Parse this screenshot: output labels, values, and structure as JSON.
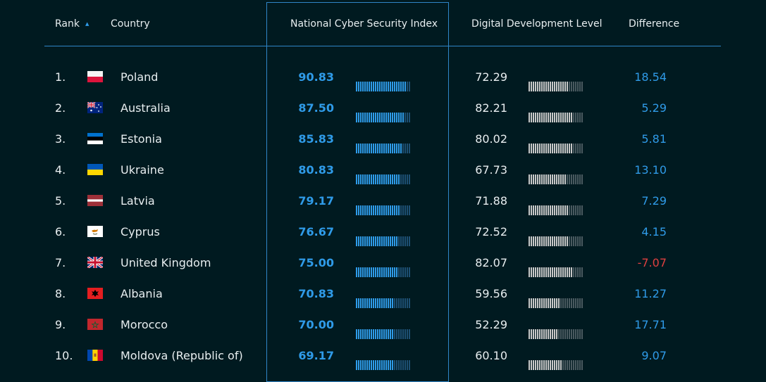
{
  "header": {
    "rank": "Rank",
    "country": "Country",
    "ncsi": "National Cyber Security Index",
    "ddl": "Digital Development Level",
    "difference": "Difference"
  },
  "colors": {
    "ncsi": "#2f9be8",
    "ddl": "#c8c8c8",
    "negative": "#e04040",
    "background": "#001a20"
  },
  "rows": [
    {
      "rank": "1.",
      "flag": "poland-flag",
      "country": "Poland",
      "ncsi": "90.83",
      "ncsi_value": 90.83,
      "ddl": "72.29",
      "ddl_value": 72.29,
      "difference": "18.54",
      "negative": false
    },
    {
      "rank": "2.",
      "flag": "australia-flag",
      "country": "Australia",
      "ncsi": "87.50",
      "ncsi_value": 87.5,
      "ddl": "82.21",
      "ddl_value": 82.21,
      "difference": "5.29",
      "negative": false
    },
    {
      "rank": "3.",
      "flag": "estonia-flag",
      "country": "Estonia",
      "ncsi": "85.83",
      "ncsi_value": 85.83,
      "ddl": "80.02",
      "ddl_value": 80.02,
      "difference": "5.81",
      "negative": false
    },
    {
      "rank": "4.",
      "flag": "ukraine-flag",
      "country": "Ukraine",
      "ncsi": "80.83",
      "ncsi_value": 80.83,
      "ddl": "67.73",
      "ddl_value": 67.73,
      "difference": "13.10",
      "negative": false
    },
    {
      "rank": "5.",
      "flag": "latvia-flag",
      "country": "Latvia",
      "ncsi": "79.17",
      "ncsi_value": 79.17,
      "ddl": "71.88",
      "ddl_value": 71.88,
      "difference": "7.29",
      "negative": false
    },
    {
      "rank": "6.",
      "flag": "cyprus-flag",
      "country": "Cyprus",
      "ncsi": "76.67",
      "ncsi_value": 76.67,
      "ddl": "72.52",
      "ddl_value": 72.52,
      "difference": "4.15",
      "negative": false
    },
    {
      "rank": "7.",
      "flag": "united-kingdom-flag",
      "country": "United Kingdom",
      "ncsi": "75.00",
      "ncsi_value": 75.0,
      "ddl": "82.07",
      "ddl_value": 82.07,
      "difference": "-7.07",
      "negative": true
    },
    {
      "rank": "8.",
      "flag": "albania-flag",
      "country": "Albania",
      "ncsi": "70.83",
      "ncsi_value": 70.83,
      "ddl": "59.56",
      "ddl_value": 59.56,
      "difference": "11.27",
      "negative": false
    },
    {
      "rank": "9.",
      "flag": "morocco-flag",
      "country": "Morocco",
      "ncsi": "70.00",
      "ncsi_value": 70.0,
      "ddl": "52.29",
      "ddl_value": 52.29,
      "difference": "17.71",
      "negative": false
    },
    {
      "rank": "10.",
      "flag": "moldova-flag",
      "country": "Moldova (Republic of)",
      "ncsi": "69.17",
      "ncsi_value": 69.17,
      "ddl": "60.10",
      "ddl_value": 60.1,
      "difference": "9.07",
      "negative": false
    }
  ]
}
